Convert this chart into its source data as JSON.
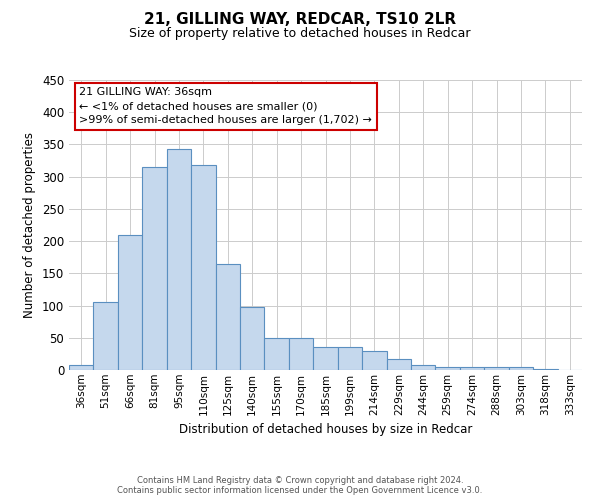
{
  "title": "21, GILLING WAY, REDCAR, TS10 2LR",
  "subtitle": "Size of property relative to detached houses in Redcar",
  "xlabel": "Distribution of detached houses by size in Redcar",
  "ylabel": "Number of detached properties",
  "bar_labels": [
    "36sqm",
    "51sqm",
    "66sqm",
    "81sqm",
    "95sqm",
    "110sqm",
    "125sqm",
    "140sqm",
    "155sqm",
    "170sqm",
    "185sqm",
    "199sqm",
    "214sqm",
    "229sqm",
    "244sqm",
    "259sqm",
    "274sqm",
    "288sqm",
    "303sqm",
    "318sqm",
    "333sqm"
  ],
  "bar_values": [
    7,
    105,
    210,
    315,
    343,
    318,
    165,
    97,
    50,
    50,
    35,
    35,
    29,
    17,
    8,
    4,
    4,
    4,
    5,
    1,
    0
  ],
  "bar_color": "#c5d8ed",
  "bar_edge_color": "#5a8fc0",
  "ylim": [
    0,
    450
  ],
  "yticks": [
    0,
    50,
    100,
    150,
    200,
    250,
    300,
    350,
    400,
    450
  ],
  "annotation_title": "21 GILLING WAY: 36sqm",
  "annotation_line1": "← <1% of detached houses are smaller (0)",
  "annotation_line2": ">99% of semi-detached houses are larger (1,702) →",
  "annotation_box_color": "#ffffff",
  "annotation_box_edge": "#cc0000",
  "footer1": "Contains HM Land Registry data © Crown copyright and database right 2024.",
  "footer2": "Contains public sector information licensed under the Open Government Licence v3.0.",
  "background_color": "#ffffff",
  "grid_color": "#cccccc"
}
